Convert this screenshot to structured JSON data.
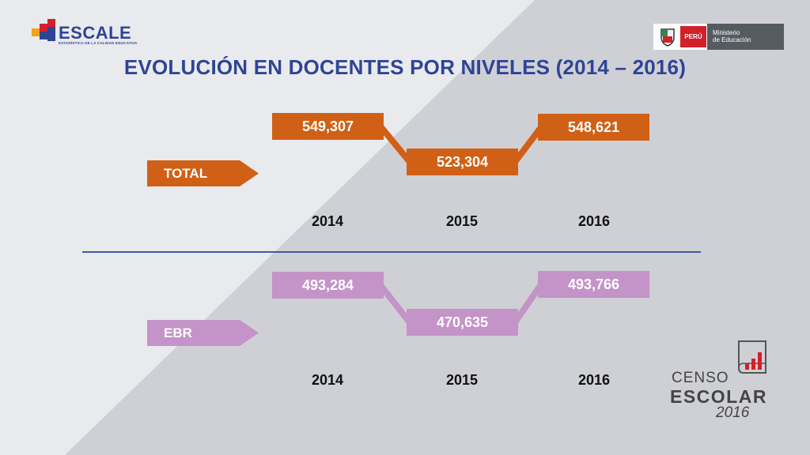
{
  "slide": {
    "title": "EVOLUCIÓN EN DOCENTES POR NIVELES (2014 – 2016)"
  },
  "logos": {
    "escale": {
      "name": "ESCALE",
      "subtitle": "ESTADÍSTICA DE LA CALIDAD EDUCATIVA"
    },
    "ministry": {
      "country": "PERÚ",
      "line1": "Ministerio",
      "line2": "de Educación"
    },
    "censo": {
      "line1": "CENSO",
      "line2": "ESCOLAR",
      "year": "2016"
    }
  },
  "colors": {
    "total": "#d06015",
    "ebr": "#c493c7",
    "title": "#2f4496",
    "divider": "#3c5aa6"
  },
  "chart_data": [
    {
      "type": "line",
      "title": "",
      "series": [
        {
          "name": "TOTAL",
          "values": [
            549307,
            523304,
            548621
          ]
        }
      ],
      "categories": [
        "2014",
        "2015",
        "2016"
      ],
      "labels": [
        "549,307",
        "523,304",
        "548,621"
      ]
    },
    {
      "type": "line",
      "title": "",
      "series": [
        {
          "name": "EBR",
          "values": [
            493284,
            470635,
            493766
          ]
        }
      ],
      "categories": [
        "2014",
        "2015",
        "2016"
      ],
      "labels": [
        "493,284",
        "470,635",
        "493,766"
      ]
    }
  ]
}
